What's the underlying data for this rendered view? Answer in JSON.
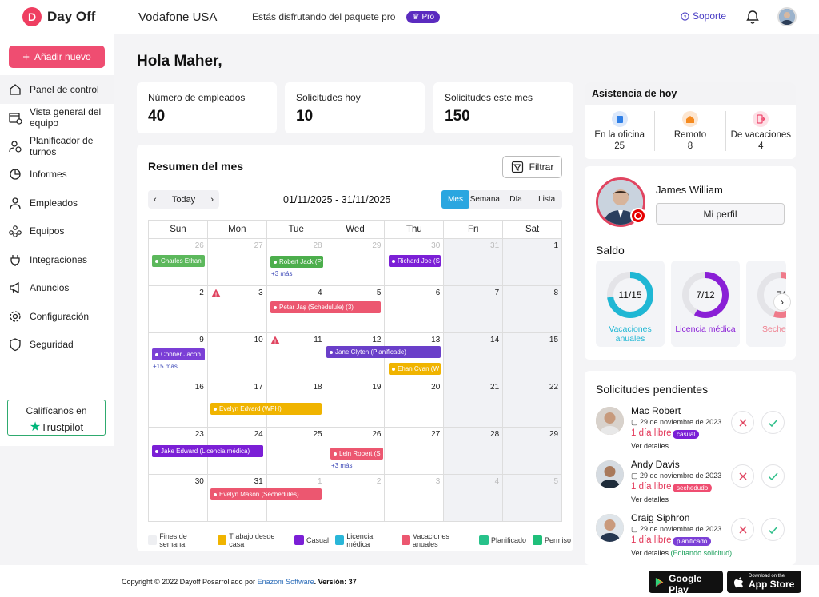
{
  "app": {
    "logo_text": "Day Off",
    "company": "Vodafone USA",
    "plan_text": "Estás disfrutando del paquete pro",
    "pro_badge": "Pro",
    "support": "Soporte"
  },
  "sidebar": {
    "add_button": "Añadir nuevo",
    "items": [
      {
        "label": "Panel de control"
      },
      {
        "label": "Vista general del equipo"
      },
      {
        "label": "Planificador de turnos"
      },
      {
        "label": "Informes"
      },
      {
        "label": "Empleados"
      },
      {
        "label": "Equipos"
      },
      {
        "label": "Integraciones"
      },
      {
        "label": "Anuncios"
      },
      {
        "label": "Configuración"
      },
      {
        "label": "Seguridad"
      }
    ],
    "trustpilot": {
      "line1": "Califícanos en",
      "line2": "Trustpilot"
    }
  },
  "greeting": "Hola Maher,",
  "stats": [
    {
      "label": "Número de empleados",
      "value": "40"
    },
    {
      "label": "Solicitudes hoy",
      "value": "10"
    },
    {
      "label": "Solicitudes este mes",
      "value": "150"
    }
  ],
  "calendar": {
    "title": "Resumen del mes",
    "filter": "Filtrar",
    "today": "Today",
    "range": "01/11/2025 - 31/11/2025",
    "views": [
      "Mes",
      "Semana",
      "Día",
      "Lista"
    ],
    "weekdays": [
      "Sun",
      "Mon",
      "Tue",
      "Wed",
      "Thu",
      "Fri",
      "Sat"
    ],
    "weeks": [
      [
        "26",
        "27",
        "28",
        "29",
        "30",
        "31",
        "1"
      ],
      [
        "2",
        "3",
        "4",
        "5",
        "6",
        "7",
        "8"
      ],
      [
        "9",
        "10",
        "11",
        "12",
        "13",
        "14",
        "15"
      ],
      [
        "16",
        "17",
        "18",
        "19",
        "20",
        "21",
        "22"
      ],
      [
        "23",
        "24",
        "25",
        "26",
        "27",
        "28",
        "29"
      ],
      [
        "30",
        "31",
        "1",
        "2",
        "3",
        "4",
        "5"
      ]
    ],
    "events": [
      {
        "label": "Charles Ethan",
        "color": "#5cb85c"
      },
      {
        "label": "Robert Jack (P",
        "color": "#4cae4c"
      },
      {
        "label": "Richard Joe (S",
        "color": "#7b1fd6"
      },
      {
        "label": "Petar Jaș (Schedulule) (3)",
        "color": "#ec5770"
      },
      {
        "label": "Conner Jacob",
        "color": "#7b3fd6"
      },
      {
        "label": "Jane Clyten (Planificade)",
        "color": "#6a3fc9"
      },
      {
        "label": "Ehan Cvan (W",
        "color": "#f0b400"
      },
      {
        "label": "Evelyn Edvard (WPH)",
        "color": "#f0b400"
      },
      {
        "label": "Jake Edward (Licencia médica)",
        "color": "#7b1fd6"
      },
      {
        "label": "Lein Robert (S",
        "color": "#ec5770"
      },
      {
        "label": "Evelyn Mason (Sechedules)",
        "color": "#ec5770"
      }
    ],
    "more": [
      "+3 más",
      "+15 más",
      "+3 más"
    ],
    "legend": [
      {
        "label": "Fines de semana",
        "color": "#eeeff2"
      },
      {
        "label": "Trabajo desde casa",
        "color": "#f0b400"
      },
      {
        "label": "Casual",
        "color": "#7b1fd6"
      },
      {
        "label": "Licencia médica",
        "color": "#29b6d8"
      },
      {
        "label": "Vacaciones anuales",
        "color": "#ec5770"
      },
      {
        "label": "Planificado",
        "color": "#27c28a"
      },
      {
        "label": "Permiso",
        "color": "#1fbf7a"
      }
    ]
  },
  "attendance": {
    "title": "Asistencia de hoy",
    "items": [
      {
        "label": "En la oficina",
        "value": "25",
        "color": "#2f7fe6"
      },
      {
        "label": "Remoto",
        "value": "8",
        "color": "#f58a1f"
      },
      {
        "label": "De vacaciones",
        "value": "4",
        "color": "#ef4d71"
      }
    ]
  },
  "profile": {
    "name": "James William",
    "button": "Mi perfil",
    "balance_title": "Saldo"
  },
  "balances": [
    {
      "label": "Vacaciones anuales",
      "value": "11/15",
      "fraction": 0.73,
      "color": "#1fb7d4"
    },
    {
      "label": "Licencia médica",
      "value": "7/12",
      "fraction": 0.58,
      "color": "#8a1fd6"
    },
    {
      "label": "Seche",
      "value": "7/",
      "fraction": 0.55,
      "color": "#ef7a8a"
    }
  ],
  "pending": {
    "title": "Solicitudes pendientes",
    "requests": [
      {
        "name": "Mac Robert",
        "date": "29 de noviembre de 2023",
        "days": "1 día libre",
        "tag": "casual",
        "tag_color": "#7b1fd6",
        "details": "Ver detalles",
        "note": ""
      },
      {
        "name": "Andy Davis",
        "date": "29 de noviembre de 2023",
        "days": "1 día libre",
        "tag": "sechedudo",
        "tag_color": "#ef4d71",
        "details": "Ver detalles",
        "note": ""
      },
      {
        "name": "Craig Siphron",
        "date": "29 de noviembre de 2023",
        "days": "1 día libre",
        "tag": "planificado",
        "tag_color": "#7b3fd6",
        "details": "Ver detalles",
        "note": "(Editando solicitud)"
      }
    ]
  },
  "footer": {
    "copyright": "Copyright © 2022 Dayoff  Posarrollado por ",
    "company_link": "Enazom Software",
    "version": ".  Versión: 37",
    "google": {
      "small": "GET IT ON",
      "big": "Google Play"
    },
    "apple": {
      "small": "Download on the",
      "big": "App Store"
    }
  }
}
